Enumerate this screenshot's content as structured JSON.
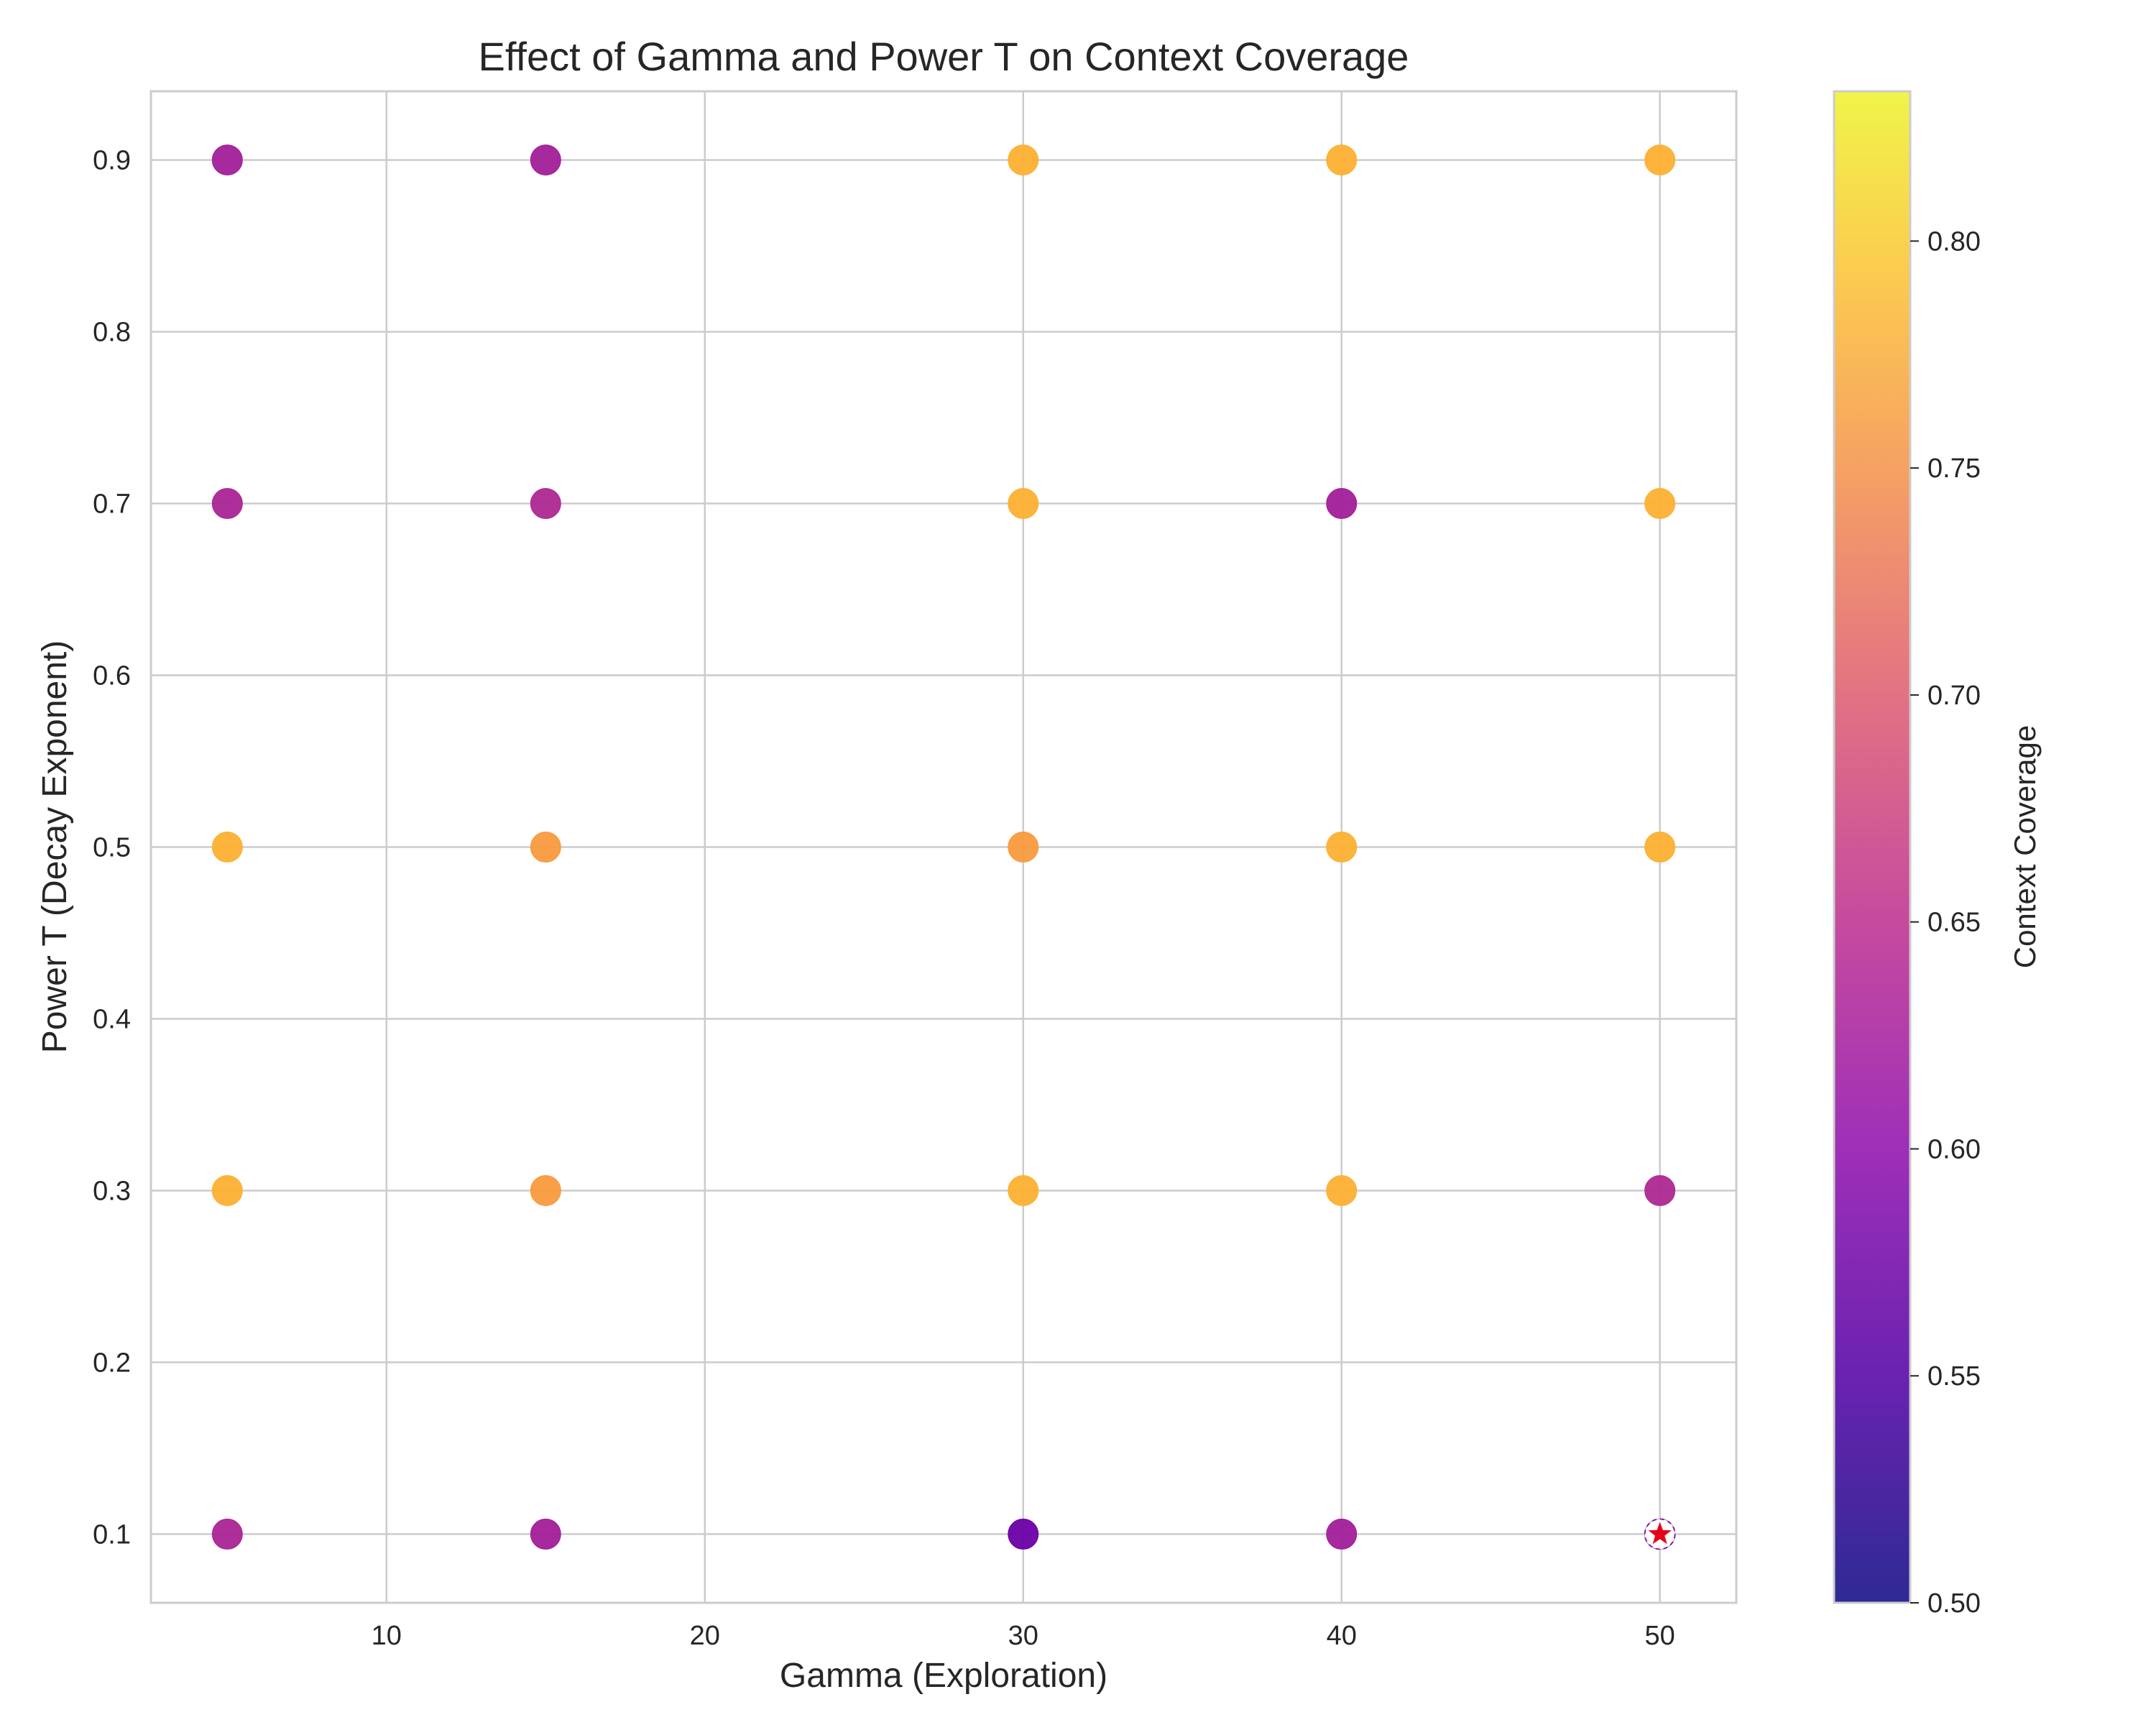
{
  "chart_data": {
    "type": "scatter",
    "title": "Effect of Gamma and Power T on Context Coverage",
    "xlabel": "Gamma (Exploration)",
    "ylabel": "Power T (Decay Exponent)",
    "xlim": [
      2.6,
      52.4
    ],
    "ylim": [
      0.06,
      0.94
    ],
    "xticks": [
      10,
      20,
      30,
      40,
      50
    ],
    "yticks": [
      0.1,
      0.2,
      0.3,
      0.4,
      0.5,
      0.6,
      0.7,
      0.8,
      0.9
    ],
    "ytick_labels": [
      "0.1",
      "0.2",
      "0.3",
      "0.4",
      "0.5",
      "0.6",
      "0.7",
      "0.8",
      "0.9"
    ],
    "grid": true,
    "colormap": "plasma",
    "colorbar": {
      "label": "Context Coverage",
      "vmin": 0.5,
      "vmax": 0.833,
      "ticks": [
        0.5,
        0.55,
        0.6,
        0.65,
        0.7,
        0.75,
        0.8
      ],
      "tick_labels": [
        "0.50",
        "0.55",
        "0.60",
        "0.65",
        "0.70",
        "0.75",
        "0.80"
      ]
    },
    "points": [
      {
        "x": 5,
        "y": 0.9,
        "c": 0.565
      },
      {
        "x": 5,
        "y": 0.7,
        "c": 0.575
      },
      {
        "x": 5,
        "y": 0.5,
        "c": 0.76
      },
      {
        "x": 5,
        "y": 0.3,
        "c": 0.76
      },
      {
        "x": 5,
        "y": 0.1,
        "c": 0.575
      },
      {
        "x": 15,
        "y": 0.9,
        "c": 0.565
      },
      {
        "x": 15,
        "y": 0.7,
        "c": 0.58
      },
      {
        "x": 15,
        "y": 0.5,
        "c": 0.735
      },
      {
        "x": 15,
        "y": 0.3,
        "c": 0.735
      },
      {
        "x": 15,
        "y": 0.1,
        "c": 0.565
      },
      {
        "x": 30,
        "y": 0.9,
        "c": 0.76
      },
      {
        "x": 30,
        "y": 0.7,
        "c": 0.76
      },
      {
        "x": 30,
        "y": 0.5,
        "c": 0.735
      },
      {
        "x": 30,
        "y": 0.3,
        "c": 0.76
      },
      {
        "x": 30,
        "y": 0.1,
        "c": 0.5
      },
      {
        "x": 40,
        "y": 0.9,
        "c": 0.76
      },
      {
        "x": 40,
        "y": 0.7,
        "c": 0.565
      },
      {
        "x": 40,
        "y": 0.5,
        "c": 0.76
      },
      {
        "x": 40,
        "y": 0.3,
        "c": 0.76
      },
      {
        "x": 40,
        "y": 0.1,
        "c": 0.565
      },
      {
        "x": 50,
        "y": 0.9,
        "c": 0.76
      },
      {
        "x": 50,
        "y": 0.7,
        "c": 0.76
      },
      {
        "x": 50,
        "y": 0.5,
        "c": 0.76
      },
      {
        "x": 50,
        "y": 0.3,
        "c": 0.58
      },
      {
        "x": 50,
        "y": 0.1,
        "c": 0.565
      }
    ],
    "highlight": {
      "x": 50,
      "y": 0.1,
      "marker": "star",
      "color": "#e8001a"
    }
  }
}
